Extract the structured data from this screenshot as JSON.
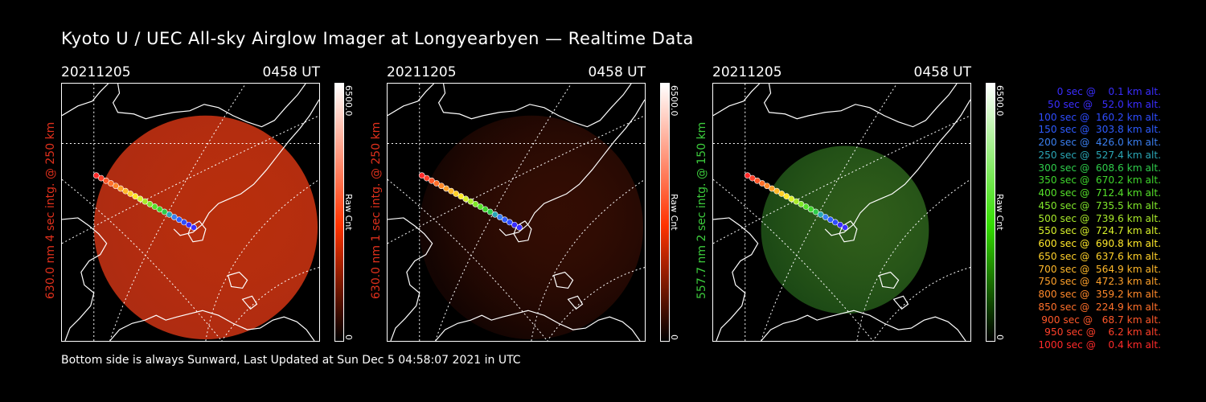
{
  "title": "Kyoto U / UEC All-sky Airglow Imager at Longyearbyen — Realtime Data",
  "footer": "Bottom side is always Sunward, Last Updated at Sun Dec  5 04:58:07 2021 in UTC",
  "panels": [
    {
      "date": "20211205",
      "time": "0458 UT",
      "side_label": "630.0 nm 4 sec intg. @ 250 km",
      "label_color": "#e0301c",
      "scale_max": "6500.0",
      "scale_min": "0",
      "scale_unit": "Raw Cnt",
      "scale_color": "#ff3300",
      "intensity": 0.72
    },
    {
      "date": "20211205",
      "time": "0458 UT",
      "side_label": "630.0 nm 1 sec intg. @ 250 km",
      "label_color": "#e0301c",
      "scale_max": "6500.0",
      "scale_min": "0",
      "scale_unit": "Raw Cnt",
      "scale_color": "#ff3300",
      "intensity": 0.2
    },
    {
      "date": "20211205",
      "time": "0458 UT",
      "side_label": "557.7 nm 2 sec intg. @ 150 km",
      "label_color": "#3ccb3c",
      "scale_max": "6500.0",
      "scale_min": "0",
      "scale_unit": "Raw Cnt",
      "scale_color": "#33dd00",
      "intensity": 0.45
    }
  ],
  "legend": [
    {
      "text": "   0 sec @    0.1 km alt.",
      "color": "#3a2dff"
    },
    {
      "text": "  50 sec @   52.0 km alt.",
      "color": "#3a2dff"
    },
    {
      "text": " 100 sec @  160.2 km alt.",
      "color": "#2e4cff"
    },
    {
      "text": " 150 sec @  303.8 km alt.",
      "color": "#2e5cff"
    },
    {
      "text": " 200 sec @  426.0 km alt.",
      "color": "#3a7ff0"
    },
    {
      "text": " 250 sec @  527.4 km alt.",
      "color": "#2aa6b5"
    },
    {
      "text": " 300 sec @  608.6 km alt.",
      "color": "#2ecc4a"
    },
    {
      "text": " 350 sec @  670.2 km alt.",
      "color": "#3fd62c"
    },
    {
      "text": " 400 sec @  712.4 km alt.",
      "color": "#55e02a"
    },
    {
      "text": " 450 sec @  735.5 km alt.",
      "color": "#7fe62a"
    },
    {
      "text": " 500 sec @  739.6 km alt.",
      "color": "#a8ea2a"
    },
    {
      "text": " 550 sec @  724.7 km alt.",
      "color": "#d8f02a"
    },
    {
      "text": " 600 sec @  690.8 km alt.",
      "color": "#ffe82a"
    },
    {
      "text": " 650 sec @  637.6 km alt.",
      "color": "#ffd02a"
    },
    {
      "text": " 700 sec @  564.9 km alt.",
      "color": "#ffb82a"
    },
    {
      "text": " 750 sec @  472.3 km alt.",
      "color": "#ffa02a"
    },
    {
      "text": " 800 sec @  359.2 km alt.",
      "color": "#ff882a"
    },
    {
      "text": " 850 sec @  224.9 km alt.",
      "color": "#ff702a"
    },
    {
      "text": " 900 sec @   68.7 km alt.",
      "color": "#ff582a"
    },
    {
      "text": " 950 sec @    6.2 km alt.",
      "color": "#ff402a"
    },
    {
      "text": "1000 sec @    0.4 km alt.",
      "color": "#ff2a2a"
    }
  ]
}
